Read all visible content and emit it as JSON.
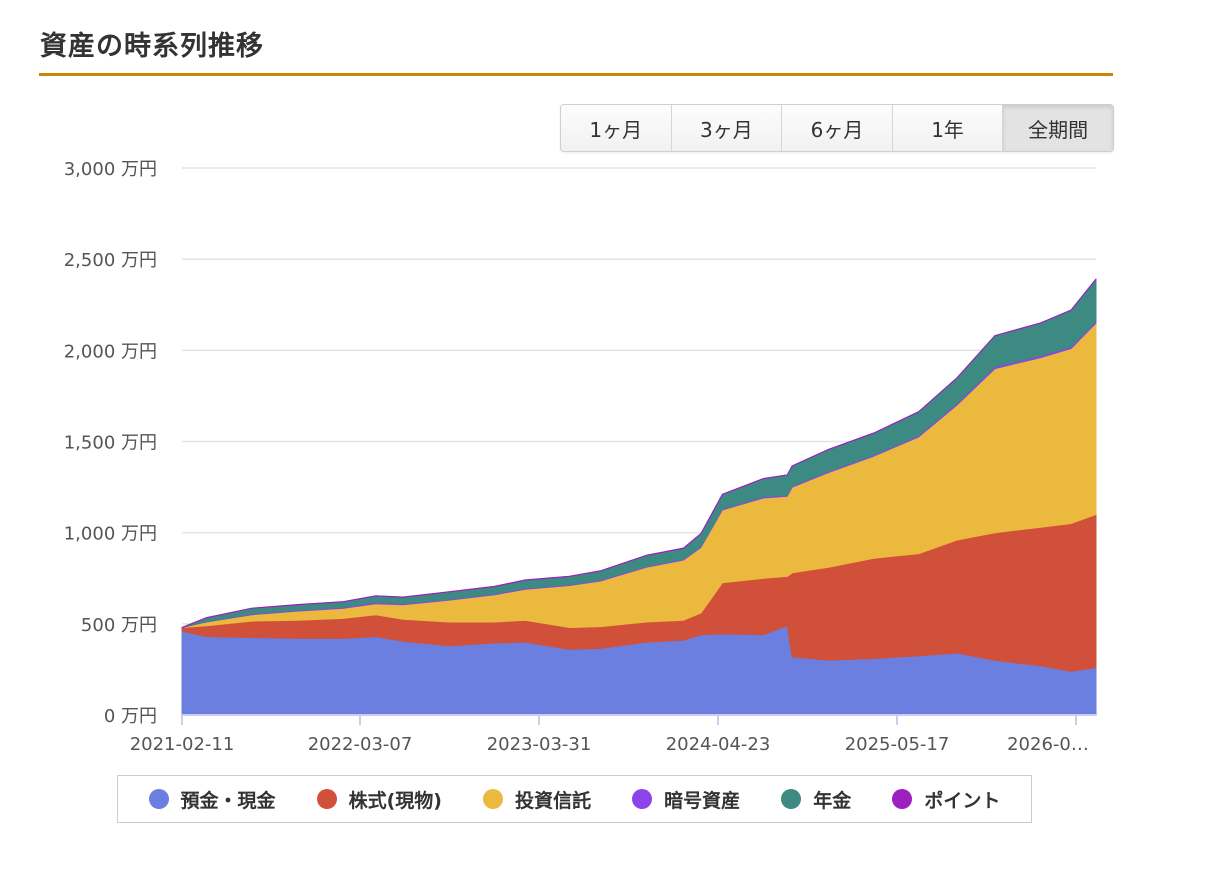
{
  "page": {
    "title": "資産の時系列推移"
  },
  "period_buttons": [
    {
      "label": "1ヶ月",
      "active": false
    },
    {
      "label": "3ヶ月",
      "active": false
    },
    {
      "label": "6ヶ月",
      "active": false
    },
    {
      "label": "1年",
      "active": false
    },
    {
      "label": "全期間",
      "active": true
    }
  ],
  "chart_data": {
    "type": "area",
    "stacked": true,
    "title": "資産の時系列推移",
    "xlabel": "",
    "ylabel": "",
    "y_unit": "万円",
    "ylim": [
      0,
      3000
    ],
    "y_ticks": [
      0,
      500,
      1000,
      1500,
      2000,
      2500,
      3000
    ],
    "y_tick_labels": [
      "0 万円",
      "500 万円",
      "1,000 万円",
      "1,500 万円",
      "2,000 万円",
      "2,500 万円",
      "3,000 万円"
    ],
    "x_range": [
      "2021-02-11",
      "2026-02-20"
    ],
    "x_tick_labels": [
      "2021-02-11",
      "2022-03-07",
      "2023-03-31",
      "2024-04-23",
      "2025-05-17",
      "2026-0…"
    ],
    "grid": true,
    "legend_position": "bottom",
    "x": [
      "2021-02-11",
      "2021-04-01",
      "2021-07-01",
      "2021-10-01",
      "2022-01-01",
      "2022-03-07",
      "2022-05-01",
      "2022-08-01",
      "2022-11-01",
      "2023-01-01",
      "2023-03-31",
      "2023-06-01",
      "2023-09-01",
      "2023-11-15",
      "2023-12-20",
      "2024-02-01",
      "2024-04-23",
      "2024-06-10",
      "2024-06-20",
      "2024-09-01",
      "2024-12-01",
      "2025-03-01",
      "2025-05-17",
      "2025-08-01",
      "2025-11-01",
      "2026-01-01",
      "2026-02-20"
    ],
    "series": [
      {
        "name": "預金・現金",
        "color": "#6a7fe0",
        "values": [
          460,
          430,
          425,
          420,
          420,
          430,
          405,
          380,
          395,
          400,
          360,
          365,
          400,
          410,
          440,
          445,
          440,
          490,
          320,
          300,
          310,
          325,
          340,
          300,
          270,
          240,
          260
        ]
      },
      {
        "name": "株式(現物)",
        "color": "#d1503a",
        "values": [
          20,
          60,
          90,
          100,
          110,
          120,
          120,
          130,
          115,
          120,
          120,
          120,
          110,
          110,
          120,
          280,
          310,
          270,
          460,
          510,
          550,
          560,
          620,
          700,
          760,
          810,
          840
        ]
      },
      {
        "name": "投資信託",
        "color": "#ebb93e",
        "values": [
          0,
          20,
          35,
          50,
          55,
          60,
          80,
          120,
          150,
          170,
          230,
          250,
          300,
          330,
          360,
          400,
          440,
          440,
          470,
          520,
          560,
          640,
          740,
          900,
          930,
          960,
          1050
        ]
      },
      {
        "name": "暗号資産",
        "color": "#8b44e8",
        "values": [
          0,
          3,
          5,
          5,
          6,
          8,
          6,
          5,
          5,
          5,
          5,
          5,
          5,
          5,
          5,
          5,
          6,
          6,
          6,
          6,
          6,
          8,
          9,
          10,
          10,
          10,
          10
        ]
      },
      {
        "name": "年金",
        "color": "#3c8a82",
        "values": [
          0,
          20,
          30,
          30,
          30,
          35,
          35,
          40,
          40,
          45,
          45,
          50,
          60,
          60,
          70,
          80,
          100,
          110,
          110,
          120,
          120,
          130,
          140,
          170,
          180,
          200,
          230
        ]
      },
      {
        "name": "ポイント",
        "color": "#9d1fbf",
        "values": [
          0,
          1,
          1,
          1,
          1,
          1,
          1,
          1,
          1,
          1,
          1,
          1,
          1,
          1,
          1,
          1,
          1,
          1,
          1,
          1,
          1,
          1,
          1,
          1,
          1,
          1,
          1
        ]
      }
    ]
  }
}
